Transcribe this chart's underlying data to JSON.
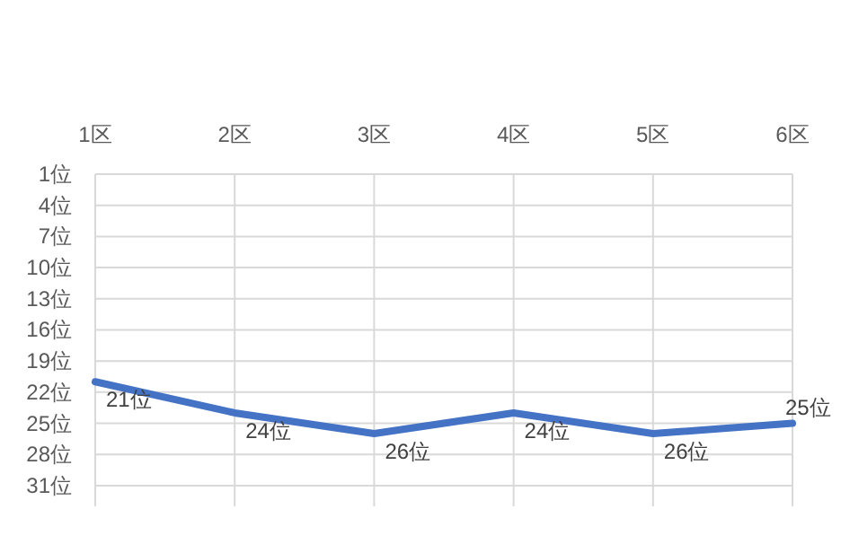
{
  "chart_data": {
    "type": "line",
    "categories": [
      "1区",
      "2区",
      "3区",
      "4区",
      "5区",
      "6区"
    ],
    "series": [
      {
        "color": "#4472c4",
        "values": [
          21,
          24,
          26,
          24,
          26,
          25
        ],
        "value_labels": [
          "21位",
          "24位",
          "26位",
          "24位",
          "26位",
          "25位"
        ]
      }
    ],
    "ylim": [
      33,
      1
    ],
    "yticks": [
      {
        "value": 1,
        "label": "1位"
      },
      {
        "value": 4,
        "label": "4位"
      },
      {
        "value": 7,
        "label": "7位"
      },
      {
        "value": 10,
        "label": "10位"
      },
      {
        "value": 13,
        "label": "13位"
      },
      {
        "value": 16,
        "label": "16位"
      },
      {
        "value": 19,
        "label": "19位"
      },
      {
        "value": 22,
        "label": "22位"
      },
      {
        "value": 25,
        "label": "25位"
      },
      {
        "value": 28,
        "label": "28位"
      },
      {
        "value": 31,
        "label": "31位"
      }
    ],
    "grid": true,
    "marker": "none",
    "line_style": "solid"
  }
}
